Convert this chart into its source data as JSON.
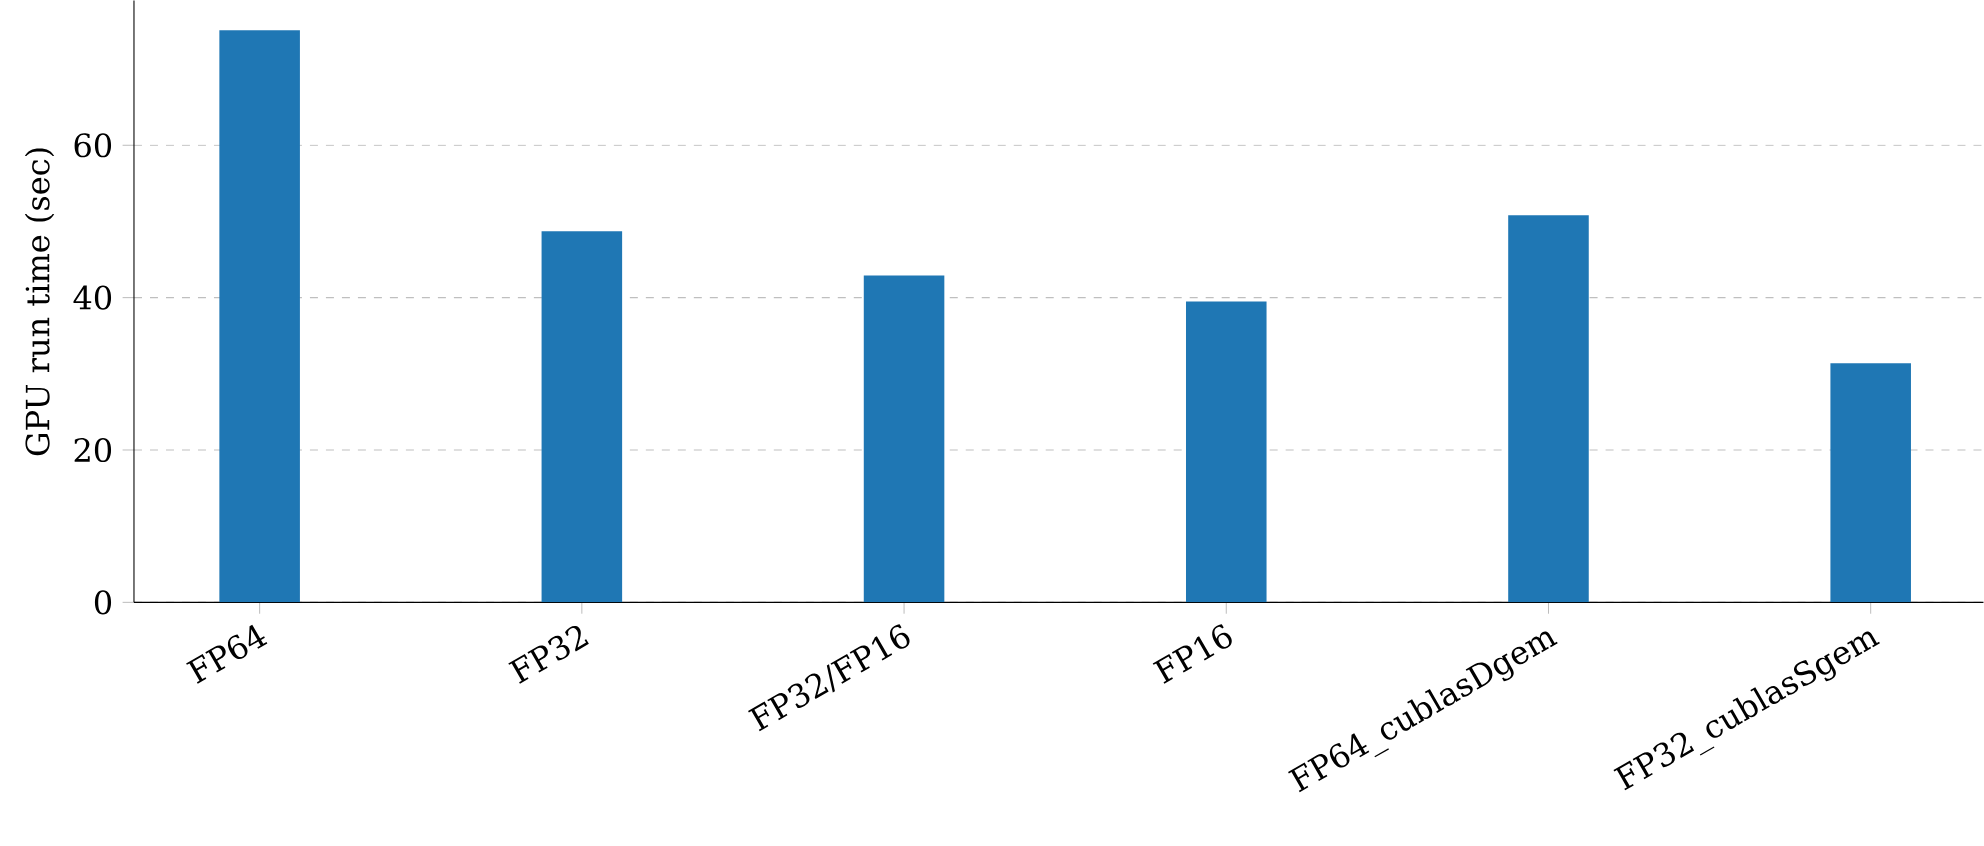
{
  "chart_data": {
    "type": "bar",
    "ylabel": "GPU run time (sec)",
    "categories": [
      "FP64",
      "FP32",
      "FP32/FP16",
      "FP16",
      "FP64_cublasDgem",
      "FP32_cublasSgem"
    ],
    "values": [
      75.1,
      48.7,
      42.9,
      39.5,
      50.8,
      31.4
    ],
    "color": "#1f77b4",
    "ylim": [
      0,
      79
    ],
    "yticks": [
      0,
      20,
      40,
      60
    ],
    "grid": "y"
  }
}
